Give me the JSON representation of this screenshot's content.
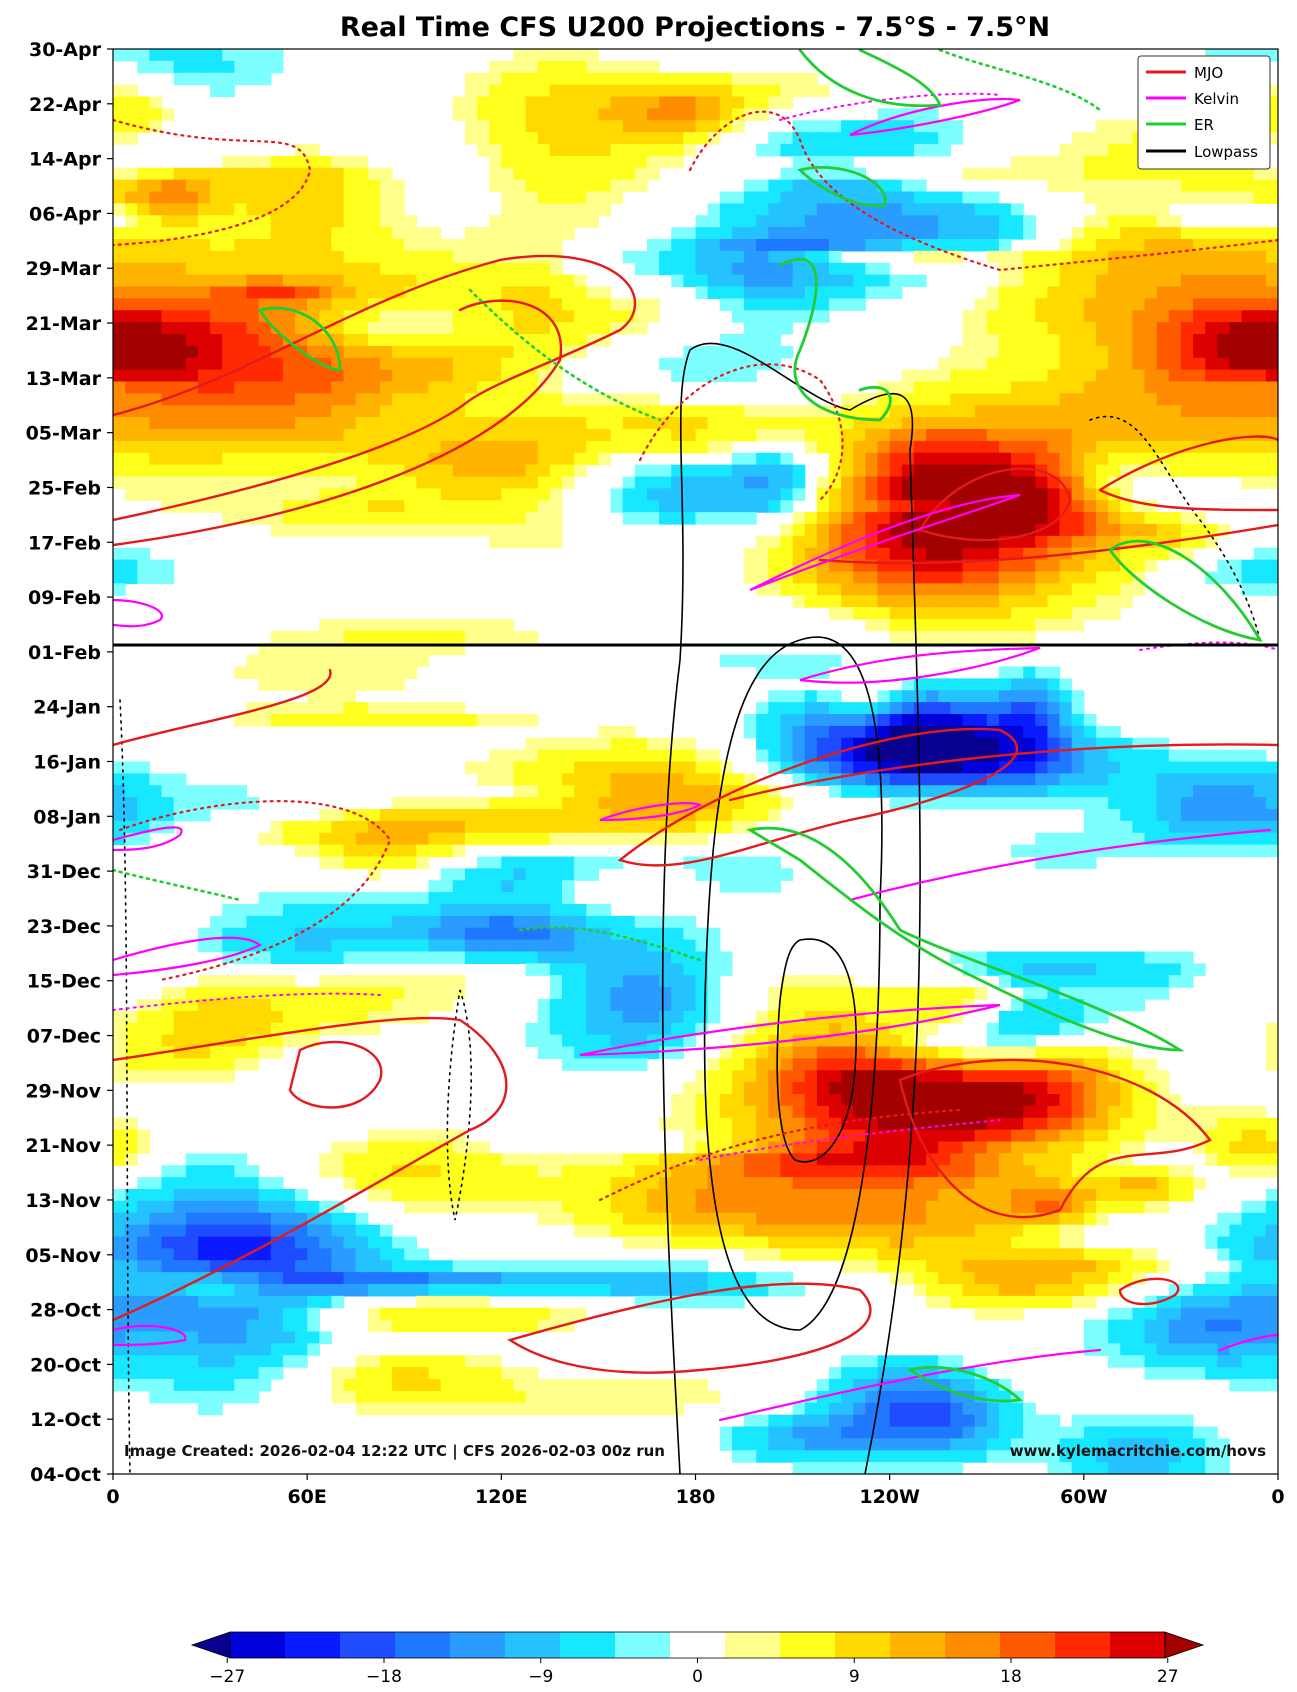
{
  "chart_data": {
    "type": "heatmap",
    "title": "Real Time CFS U200 Projections - 7.5°S - 7.5°N",
    "xlabel": "",
    "ylabel": "",
    "x_ticks": [
      {
        "lon": 0,
        "label": "0"
      },
      {
        "lon": 60,
        "label": "60E"
      },
      {
        "lon": 120,
        "label": "120E"
      },
      {
        "lon": 180,
        "label": "180"
      },
      {
        "lon": 240,
        "label": "120W"
      },
      {
        "lon": 300,
        "label": "60W"
      },
      {
        "lon": 360,
        "label": "0"
      }
    ],
    "x_range": [
      0,
      360
    ],
    "y_ticks": [
      "04-Oct",
      "12-Oct",
      "20-Oct",
      "28-Oct",
      "05-Nov",
      "13-Nov",
      "21-Nov",
      "29-Nov",
      "07-Dec",
      "15-Dec",
      "23-Dec",
      "31-Dec",
      "08-Jan",
      "16-Jan",
      "24-Jan",
      "01-Feb",
      "09-Feb",
      "17-Feb",
      "25-Feb",
      "05-Mar",
      "13-Mar",
      "21-Mar",
      "29-Mar",
      "06-Apr",
      "14-Apr",
      "22-Apr",
      "30-Apr"
    ],
    "y_range": [
      "04-Oct",
      "30-Apr"
    ],
    "forecast_start": "02-Feb",
    "legend": {
      "position": "top-right",
      "entries": [
        {
          "label": "MJO",
          "color": "#e41a1c"
        },
        {
          "label": "Kelvin",
          "color": "#ff00ff"
        },
        {
          "label": "ER",
          "color": "#22cc33"
        },
        {
          "label": "Lowpass",
          "color": "#000000"
        }
      ]
    },
    "colorbar": {
      "ticks": [
        "−27",
        "−18",
        "−9",
        "0",
        "9",
        "18",
        "27"
      ],
      "levels_min": -30,
      "levels_max": 30,
      "colors": [
        "#08008f",
        "#0000d8",
        "#0a1cff",
        "#1f4cff",
        "#1f78ff",
        "#2a9bff",
        "#24c2ff",
        "#18e8ff",
        "#7dffff",
        "#ffffff",
        "#ffff8c",
        "#ffff1e",
        "#ffd900",
        "#ffb400",
        "#ff8c00",
        "#ff5a00",
        "#ff2a00",
        "#dd0000",
        "#a30000"
      ]
    },
    "credits": {
      "left": "Image Created: 2026-02-04 12:22 UTC | CFS 2026-02-03 00z run",
      "right": "www.kylemacritchie.com/hovs"
    }
  }
}
